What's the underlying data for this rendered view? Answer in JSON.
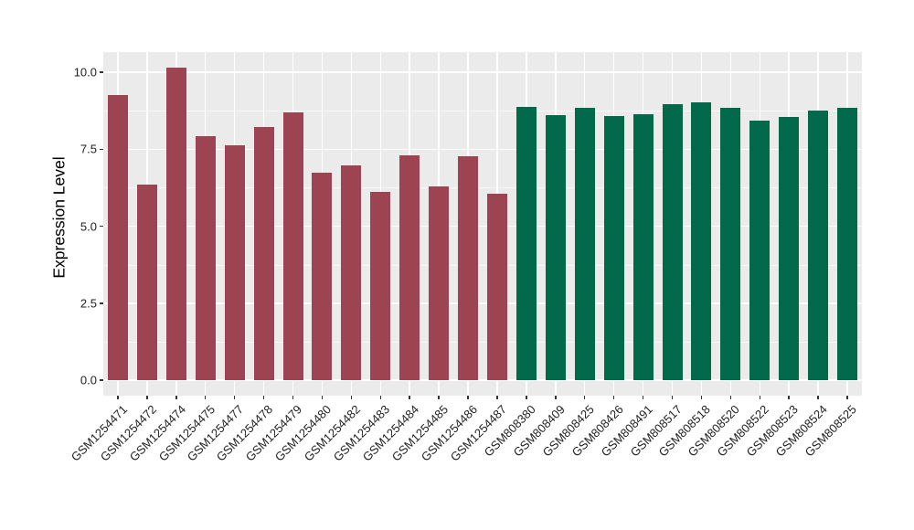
{
  "figure": {
    "background": "#FFFFFF"
  },
  "chart_data": {
    "type": "bar",
    "title": "",
    "xlabel": "",
    "ylabel": "Expression Level",
    "grid": "on",
    "legend": "none",
    "panel_bg": "#EBEBEB",
    "grid_color": "#FFFFFF",
    "axis_text_color": "#1F1F1F",
    "ylim": [
      0,
      10.7
    ],
    "ytick_labels": [
      "0.0",
      "2.5",
      "5.0",
      "7.5",
      "10.0"
    ],
    "ytick_values": [
      0,
      2.5,
      5,
      7.5,
      10
    ],
    "yminor_values": [
      1.25,
      3.75,
      6.25,
      8.75
    ],
    "series": [
      {
        "name": "left-group",
        "color": "#9D4452",
        "categories": [
          "GSM1254471",
          "GSM1254472",
          "GSM1254474",
          "GSM1254475",
          "GSM1254477",
          "GSM1254478",
          "GSM1254479",
          "GSM1254480",
          "GSM1254482",
          "GSM1254483",
          "GSM1254484",
          "GSM1254485",
          "GSM1254486",
          "GSM1254487"
        ],
        "values": [
          9.27,
          6.36,
          10.15,
          7.91,
          7.62,
          8.23,
          8.68,
          6.73,
          6.96,
          6.11,
          7.3,
          6.28,
          7.28,
          6.06
        ]
      },
      {
        "name": "right-group",
        "color": "#02694B",
        "categories": [
          "GSM808380",
          "GSM808409",
          "GSM808425",
          "GSM808426",
          "GSM808491",
          "GSM808517",
          "GSM808518",
          "GSM808520",
          "GSM808522",
          "GSM808523",
          "GSM808524",
          "GSM808525"
        ],
        "values": [
          8.88,
          8.61,
          8.85,
          8.57,
          8.64,
          8.96,
          9.03,
          8.83,
          8.42,
          8.54,
          8.76,
          8.83
        ]
      }
    ]
  }
}
